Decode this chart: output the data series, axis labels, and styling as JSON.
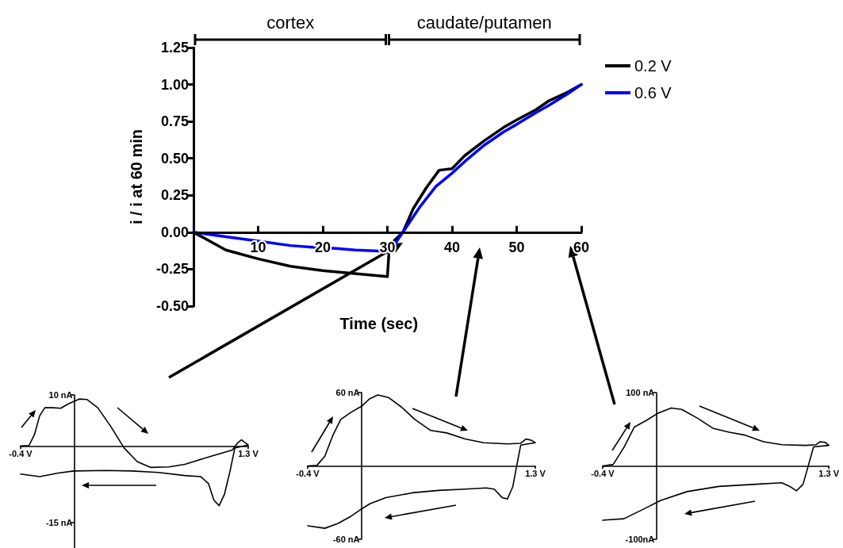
{
  "chart_data": [
    {
      "type": "line",
      "xlabel": "Time (sec)",
      "ylabel": "i / i at 60 min",
      "xlim": [
        0,
        60
      ],
      "xticks": [
        10,
        20,
        30,
        40,
        50,
        60
      ],
      "ylim": [
        -0.5,
        1.25
      ],
      "yticks": [
        {
          "value": -0.5,
          "label": "-0.50"
        },
        {
          "value": -0.25,
          "label": "-0.25"
        },
        {
          "value": 0,
          "label": "0.00"
        },
        {
          "value": 0.25,
          "label": "0.25"
        },
        {
          "value": 0.5,
          "label": "0.50"
        },
        {
          "value": 0.75,
          "label": "0.75"
        },
        {
          "value": 1,
          "label": "1.00"
        },
        1.25
      ],
      "grid": false,
      "legend": "top right",
      "marker": "none",
      "line_style": "solid",
      "annotations": [
        "cortex",
        "caudate/putamen"
      ],
      "series": [
        {
          "name": "0.2 V",
          "color": "#000000",
          "x": [
            0,
            5,
            10,
            15,
            20,
            25,
            30,
            30.3,
            31,
            32.4,
            34,
            36,
            38,
            40,
            42,
            45,
            48,
            50,
            53,
            55,
            58,
            60
          ],
          "values": [
            0,
            -0.12,
            -0.18,
            -0.23,
            -0.26,
            -0.28,
            -0.3,
            -0.1,
            -0.06,
            0,
            0.16,
            0.3,
            0.42,
            0.43,
            0.52,
            0.62,
            0.71,
            0.76,
            0.83,
            0.89,
            0.95,
            1.0
          ]
        },
        {
          "name": "0.6 V",
          "color": "#0000ff",
          "x": [
            0,
            5,
            10,
            15,
            18,
            22,
            25,
            30,
            31,
            32.4,
            35,
            37.5,
            40,
            42,
            45,
            48,
            50,
            53,
            55,
            58,
            60
          ],
          "values": [
            0,
            -0.03,
            -0.06,
            -0.09,
            -0.1,
            -0.11,
            -0.12,
            -0.13,
            -0.09,
            0,
            0.17,
            0.31,
            0.4,
            0.48,
            0.59,
            0.68,
            0.73,
            0.81,
            0.86,
            0.94,
            1.0
          ]
        }
      ]
    },
    {
      "type": "line",
      "xlim": [
        -0.4,
        1.3
      ],
      "xticks": [
        {
          "value": -0.4,
          "label": "-0.4 V"
        },
        {
          "value": 1.3,
          "label": "1.3 V"
        }
      ],
      "ylim": [
        -20,
        10
      ],
      "yticks": [
        {
          "value": -15,
          "label": "-15 nA"
        },
        {
          "value": 10,
          "label": "10 nA"
        }
      ],
      "grid": false,
      "marker": "none",
      "line_style": "solid",
      "series": [
        {
          "color": "#000000",
          "x": [
            -0.4,
            -0.337,
            -0.297,
            -0.258,
            -0.219,
            -0.159,
            -0.1,
            -0.041,
            0.038,
            0.097,
            0.176,
            0.274,
            0.373,
            0.472,
            0.57,
            0.708,
            0.826,
            1.024,
            1.181,
            1.221,
            1.25,
            1.3,
            1.2,
            1.162,
            1.122,
            1.083,
            1.043,
            1.004,
            0.945,
            0.826,
            0.629,
            0.432,
            0.235,
            -0.002,
            -0.12,
            -0.258,
            -0.4
          ],
          "values": [
            0,
            0.1,
            2.2,
            5.9,
            7.5,
            7.5,
            7.4,
            8.3,
            9.2,
            9.1,
            7.5,
            3.8,
            -0.4,
            -3.1,
            -4.2,
            -4.1,
            -3.6,
            -2.0,
            -0.8,
            0.6,
            1.2,
            0.2,
            -0.4,
            -5.2,
            -9.5,
            -11.7,
            -10.6,
            -7.4,
            -6.0,
            -5.8,
            -5.2,
            -4.9,
            -4.8,
            -4.9,
            -5.3,
            -6.0,
            -5.5
          ]
        }
      ]
    },
    {
      "type": "line",
      "xlim": [
        -0.4,
        1.3
      ],
      "xticks": [
        {
          "value": -0.4,
          "label": "-0.4 V"
        },
        {
          "value": 1.3,
          "label": "1.3 V"
        }
      ],
      "ylim": [
        -60,
        60
      ],
      "yticks": [
        {
          "value": -60,
          "label": "-60 nA"
        },
        {
          "value": 60,
          "label": "60 nA"
        }
      ],
      "grid": false,
      "marker": "none",
      "line_style": "solid",
      "series": [
        {
          "color": "#000000",
          "x": [
            -0.4,
            -0.331,
            -0.272,
            -0.212,
            -0.153,
            -0.074,
            0.005,
            0.064,
            0.124,
            0.203,
            0.302,
            0.4,
            0.519,
            0.638,
            0.776,
            0.914,
            1.092,
            1.191,
            1.23,
            1.27,
            1.3,
            1.191,
            1.161,
            1.132,
            1.092,
            1.053,
            0.993,
            0.934,
            0.776,
            0.578,
            0.381,
            0.183,
            0.064,
            0.005,
            -0.074,
            -0.173,
            -0.272,
            -0.4
          ],
          "values": [
            0,
            0.4,
            8,
            25,
            38,
            44,
            49,
            55,
            58,
            56,
            48,
            38,
            29,
            27,
            22,
            19,
            18,
            18.5,
            22,
            21,
            19,
            17,
            0,
            -17,
            -27,
            -26,
            -19,
            -18,
            -19,
            -20,
            -22,
            -26,
            -31,
            -35,
            -41,
            -47,
            -51,
            -49
          ]
        }
      ]
    },
    {
      "type": "line",
      "xlim": [
        -0.4,
        1.3
      ],
      "xticks": [
        {
          "value": -0.4,
          "label": "-0.4 V"
        },
        {
          "value": 1.3,
          "label": "1.3 V"
        }
      ],
      "ylim": [
        -100,
        100
      ],
      "yticks": [
        {
          "value": -100,
          "label": "-100nA"
        },
        {
          "value": 100,
          "label": "100 nA"
        }
      ],
      "grid": false,
      "marker": "none",
      "line_style": "solid",
      "series": [
        {
          "color": "#000000",
          "x": [
            -0.4,
            -0.321,
            -0.241,
            -0.162,
            -0.063,
            0.016,
            0.115,
            0.194,
            0.313,
            0.432,
            0.551,
            0.67,
            0.809,
            0.947,
            1.126,
            1.205,
            1.235,
            1.274,
            1.3,
            1.185,
            1.145,
            1.106,
            1.056,
            1.007,
            0.947,
            0.749,
            0.472,
            0.234,
            0.036,
            -0.083,
            -0.241,
            -0.4
          ],
          "values": [
            0,
            2,
            25,
            53,
            63,
            72,
            79,
            77,
            65,
            51,
            46,
            42,
            33,
            29,
            28,
            29,
            33,
            32,
            28,
            26,
            0,
            -25,
            -34,
            -28,
            -23,
            -25,
            -28,
            -35,
            -47,
            -58,
            -72,
            -74
          ]
        }
      ]
    }
  ]
}
